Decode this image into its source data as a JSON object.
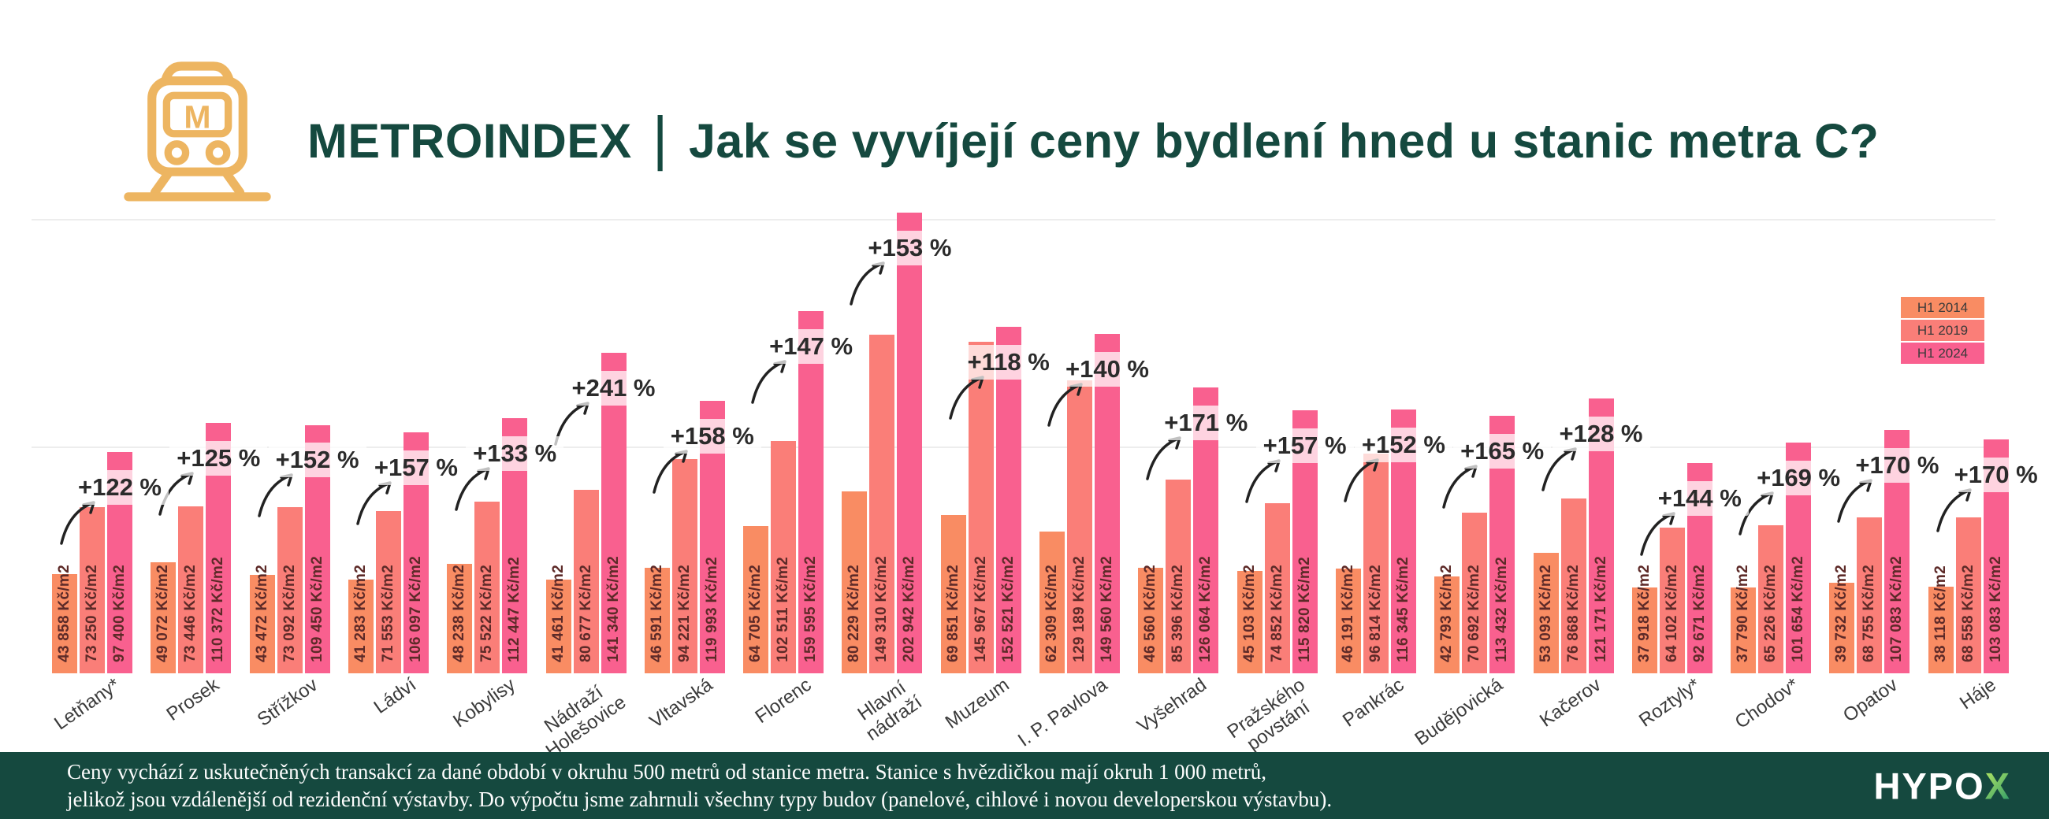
{
  "header": {
    "brand": "METROINDEX",
    "separator": "|",
    "question": "Jak se vyvíjejí ceny bydlení hned u stanic metra C?"
  },
  "legend": {
    "items": [
      "H1 2014",
      "H1 2019",
      "H1 2024"
    ]
  },
  "colors": {
    "h1_2014": "#F98C63",
    "h1_2019": "#FA7E78",
    "h1_2024": "#F9608F",
    "title_green": "#15493F",
    "footer_bg": "#15493F",
    "icon_gold": "#EDB561",
    "bar_value_text": "#5D2A28",
    "percent_text": "#2B2B2B",
    "gridline": "#EDEDED",
    "logo_x_green_1": "#A9E063",
    "logo_x_green_2": "#38A169"
  },
  "chart_data": {
    "type": "bar",
    "unit": "Kč/m2",
    "ylim": [
      0,
      210000
    ],
    "gridlines": [
      100000,
      200000
    ],
    "grid": "horizontal-only",
    "legend_position": "top-right",
    "categories": [
      "Letňany*",
      "Prosek",
      "Střížkov",
      "Ládví",
      "Kobylisy",
      "Nádraží\nHolešovice",
      "Vltavská",
      "Florenc",
      "Hlavní\nnádraží",
      "Muzeum",
      "I. P. Pavlova",
      "Vyšehrad",
      "Pražského\npovstání",
      "Pankrác",
      "Budějovická",
      "Kačerov",
      "Roztyly*",
      "Chodov*",
      "Opatov",
      "Háje"
    ],
    "series": [
      {
        "name": "H1 2014",
        "values": [
          43858,
          49072,
          43472,
          41283,
          48238,
          41461,
          46591,
          64705,
          80229,
          69851,
          62309,
          46560,
          45103,
          46191,
          42793,
          53093,
          37918,
          37790,
          39732,
          38118
        ]
      },
      {
        "name": "H1 2019",
        "values": [
          73250,
          73446,
          73092,
          71553,
          75522,
          80677,
          94221,
          102511,
          149310,
          145967,
          129189,
          85396,
          74852,
          96814,
          70692,
          76868,
          64102,
          65226,
          68755,
          68558
        ]
      },
      {
        "name": "H1 2024",
        "values": [
          97400,
          110372,
          109450,
          106097,
          112447,
          141340,
          119993,
          159595,
          202942,
          152521,
          149560,
          126064,
          115820,
          116345,
          113432,
          121171,
          92671,
          101654,
          107083,
          103083
        ]
      }
    ],
    "bar_labels": [
      [
        "43 858 Kč/m2",
        "73 250 Kč/m2",
        "97 400 Kč/m2"
      ],
      [
        "49 072 Kč/m2",
        "73 446 Kč/m2",
        "110 372 Kč/m2"
      ],
      [
        "43 472 Kč/m2",
        "73 092 Kč/m2",
        "109 450 Kč/m2"
      ],
      [
        "41 283 Kč/m2",
        "71 553 Kč/m2",
        "106 097 Kč/m2"
      ],
      [
        "48 238 Kč/m2",
        "75 522 Kč/m2",
        "112 447 Kč/m2"
      ],
      [
        "41 461 Kč/m2",
        "80 677 Kč/m2",
        "141 340 Kč/m2"
      ],
      [
        "46 591 Kč/m2",
        "94 221 Kč/m2",
        "119 993 Kč/m2"
      ],
      [
        "64 705 Kč/m2",
        "102 511 Kč/m2",
        "159 595 Kč/m2"
      ],
      [
        "80 229 Kč/m2",
        "149 310 Kč/m2",
        "202 942 Kč/m2"
      ],
      [
        "69 851 Kč/m2",
        "145 967 Kč/m2",
        "152 521 Kč/m2"
      ],
      [
        "62 309 Kč/m2",
        "129 189 Kč/m2",
        "149 560 Kč/m2"
      ],
      [
        "46 560 Kč/m2",
        "85 396 Kč/m2",
        "126 064 Kč/m2"
      ],
      [
        "45 103 Kč/m2",
        "74 852 Kč/m2",
        "115 820 Kč/m2"
      ],
      [
        "46 191 Kč/m2",
        "96 814 Kč/m2",
        "116 345 Kč/m2"
      ],
      [
        "42 793 Kč/m2",
        "70 692 Kč/m2",
        "113 432 Kč/m2"
      ],
      [
        "53 093 Kč/m2",
        "76 868 Kč/m2",
        "121 171 Kč/m2"
      ],
      [
        "37 918 Kč/m2",
        "64 102 Kč/m2",
        "92 671 Kč/m2"
      ],
      [
        "37 790 Kč/m2",
        "65 226 Kč/m2",
        "101 654 Kč/m2"
      ],
      [
        "39 732 Kč/m2",
        "68 755 Kč/m2",
        "107 083 Kč/m2"
      ],
      [
        "38 118 Kč/m2",
        "68 558 Kč/m2",
        "103 083 Kč/m2"
      ]
    ],
    "growth_labels": [
      "+122 %",
      "+125 %",
      "+152 %",
      "+157 %",
      "+133 %",
      "+241 %",
      "+158 %",
      "+147 %",
      "+153 %",
      "+118 %",
      "+140 %",
      "+171 %",
      "+157 %",
      "+152 %",
      "+165 %",
      "+128 %",
      "+144 %",
      "+169 %",
      "+170 %",
      "+170 %"
    ]
  },
  "footer": {
    "line1": "Ceny vychází z uskutečněných transakcí za dané období v okruhu 500 metrů od stanice metra. Stanice s hvězdičkou mají okruh 1 000 metrů,",
    "line2": "jelikož jsou vzdálenější od rezidenční výstavby. Do výpočtu jsme zahrnuli všechny typy budov (panelové, cihlové i novou developerskou výstavbu).",
    "logo_white": "HYPO",
    "logo_green": "X"
  }
}
